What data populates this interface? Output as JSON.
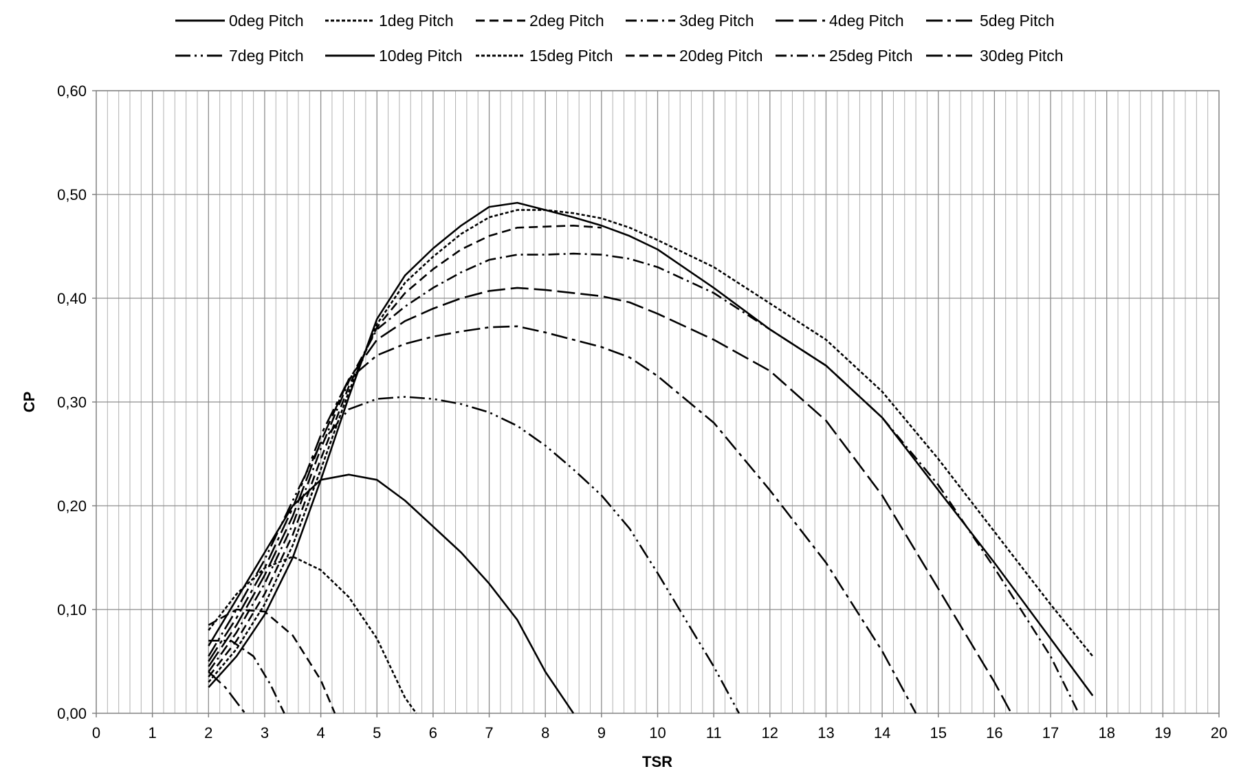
{
  "chart_data": {
    "type": "line",
    "title": "",
    "xlabel": "TSR",
    "ylabel": "CP",
    "xlim": [
      0,
      20
    ],
    "ylim": [
      0,
      0.6
    ],
    "x_ticks": [
      "0",
      "1",
      "2",
      "3",
      "4",
      "5",
      "6",
      "7",
      "8",
      "9",
      "10",
      "11",
      "12",
      "13",
      "14",
      "15",
      "16",
      "17",
      "18",
      "19",
      "20"
    ],
    "y_ticks": [
      "0,00",
      "0,10",
      "0,20",
      "0,30",
      "0,40",
      "0,50",
      "0,60"
    ],
    "grid": "on",
    "legend_placement": "top",
    "line_color": "#000000",
    "series": [
      {
        "name": "0deg Pitch",
        "dash": "solid",
        "x": [
          2,
          2.5,
          3,
          3.5,
          4,
          4.5,
          5,
          5.5,
          6,
          6.5,
          7,
          7.5,
          8,
          8.5,
          9,
          9.5,
          10,
          11,
          12,
          13,
          14,
          15,
          16,
          17,
          17.75
        ],
        "y": [
          0.025,
          0.055,
          0.095,
          0.15,
          0.225,
          0.305,
          0.38,
          0.422,
          0.448,
          0.47,
          0.488,
          0.492,
          0.485,
          0.478,
          0.47,
          0.46,
          0.447,
          0.41,
          0.37,
          0.335,
          0.285,
          0.215,
          0.145,
          0.072,
          0.017
        ]
      },
      {
        "name": "1deg Pitch",
        "dash": "shortdash",
        "x": [
          2,
          2.5,
          3,
          3.5,
          4,
          4.5,
          5,
          5.5,
          6,
          6.5,
          7,
          7.5,
          8,
          8.5,
          9,
          9.5,
          10,
          11,
          12,
          13,
          14,
          15,
          16,
          17,
          17.75
        ],
        "y": [
          0.03,
          0.062,
          0.105,
          0.162,
          0.235,
          0.31,
          0.375,
          0.415,
          0.44,
          0.462,
          0.478,
          0.485,
          0.485,
          0.482,
          0.477,
          0.468,
          0.456,
          0.43,
          0.395,
          0.36,
          0.31,
          0.245,
          0.175,
          0.105,
          0.055
        ]
      },
      {
        "name": "2deg Pitch",
        "dash": "dash",
        "x": [
          2,
          2.5,
          3,
          3.5,
          4,
          4.5,
          5,
          5.5,
          6,
          6.5,
          7,
          7.5,
          8,
          8.5,
          9
        ],
        "y": [
          0.035,
          0.07,
          0.115,
          0.172,
          0.245,
          0.315,
          0.372,
          0.405,
          0.428,
          0.447,
          0.46,
          0.468,
          0.469,
          0.47,
          0.468
        ]
      },
      {
        "name": "3deg Pitch",
        "dash": "dashdot",
        "x": [
          2,
          2.5,
          3,
          3.5,
          4,
          4.5,
          5,
          5.5,
          6,
          6.5,
          7,
          7.5,
          8,
          8.5,
          9,
          9.5,
          10,
          11,
          12,
          13,
          14,
          15,
          16,
          17,
          17.5
        ],
        "y": [
          0.04,
          0.078,
          0.125,
          0.182,
          0.255,
          0.32,
          0.37,
          0.392,
          0.41,
          0.425,
          0.437,
          0.442,
          0.442,
          0.443,
          0.442,
          0.438,
          0.43,
          0.405,
          0.37,
          0.335,
          0.285,
          0.22,
          0.14,
          0.055,
          0.0
        ]
      },
      {
        "name": "4deg Pitch",
        "dash": "longdash",
        "x": [
          2,
          2.5,
          3,
          3.5,
          4,
          4.5,
          5,
          5.5,
          6,
          6.5,
          7,
          7.5,
          8,
          8.5,
          9,
          9.5,
          10,
          11,
          12,
          13,
          14,
          15,
          16,
          16.3
        ],
        "y": [
          0.045,
          0.085,
          0.133,
          0.19,
          0.262,
          0.322,
          0.36,
          0.378,
          0.39,
          0.4,
          0.407,
          0.41,
          0.408,
          0.405,
          0.402,
          0.396,
          0.385,
          0.36,
          0.33,
          0.282,
          0.21,
          0.12,
          0.03,
          0.0
        ]
      },
      {
        "name": "5deg Pitch",
        "dash": "longdashdot",
        "x": [
          2,
          2.5,
          3,
          3.5,
          4,
          4.5,
          5,
          5.5,
          6,
          6.5,
          7,
          7.5,
          8,
          8.5,
          9,
          9.5,
          10,
          11,
          12,
          13,
          14,
          14.6
        ],
        "y": [
          0.05,
          0.092,
          0.14,
          0.198,
          0.268,
          0.322,
          0.345,
          0.356,
          0.363,
          0.368,
          0.372,
          0.373,
          0.367,
          0.36,
          0.353,
          0.343,
          0.325,
          0.28,
          0.215,
          0.145,
          0.06,
          0.0
        ]
      },
      {
        "name": "7deg Pitch",
        "dash": "longdashdotdot",
        "x": [
          2,
          2.5,
          3,
          3.5,
          4,
          4.5,
          5,
          5.5,
          6,
          6.5,
          7,
          7.5,
          8,
          8.5,
          9,
          9.5,
          10,
          10.5,
          11,
          11.45
        ],
        "y": [
          0.055,
          0.1,
          0.148,
          0.205,
          0.26,
          0.293,
          0.303,
          0.305,
          0.303,
          0.298,
          0.29,
          0.277,
          0.258,
          0.235,
          0.21,
          0.178,
          0.135,
          0.09,
          0.045,
          0.0
        ]
      },
      {
        "name": "10deg Pitch",
        "dash": "solid",
        "x": [
          2,
          2.5,
          3,
          3.5,
          4,
          4.5,
          5,
          5.5,
          6,
          6.5,
          7,
          7.5,
          8,
          8.5
        ],
        "y": [
          0.065,
          0.11,
          0.155,
          0.2,
          0.225,
          0.23,
          0.225,
          0.205,
          0.18,
          0.155,
          0.125,
          0.09,
          0.04,
          0.0
        ]
      },
      {
        "name": "15deg Pitch",
        "dash": "shortdash",
        "x": [
          2,
          2.5,
          3,
          3.5,
          4,
          4.5,
          5,
          5.5,
          5.7
        ],
        "y": [
          0.08,
          0.115,
          0.14,
          0.151,
          0.138,
          0.112,
          0.072,
          0.015,
          0.0
        ]
      },
      {
        "name": "20deg Pitch",
        "dash": "dash",
        "x": [
          2,
          2.5,
          3,
          3.5,
          4,
          4.25
        ],
        "y": [
          0.085,
          0.1,
          0.098,
          0.075,
          0.032,
          0.0
        ]
      },
      {
        "name": "25deg Pitch",
        "dash": "dashdot",
        "x": [
          2,
          2.4,
          2.8,
          3.1,
          3.35
        ],
        "y": [
          0.07,
          0.07,
          0.055,
          0.028,
          0.0
        ]
      },
      {
        "name": "30deg Pitch",
        "dash": "longdashdot",
        "x": [
          2,
          2.3,
          2.65
        ],
        "y": [
          0.04,
          0.025,
          0.0
        ]
      }
    ]
  }
}
